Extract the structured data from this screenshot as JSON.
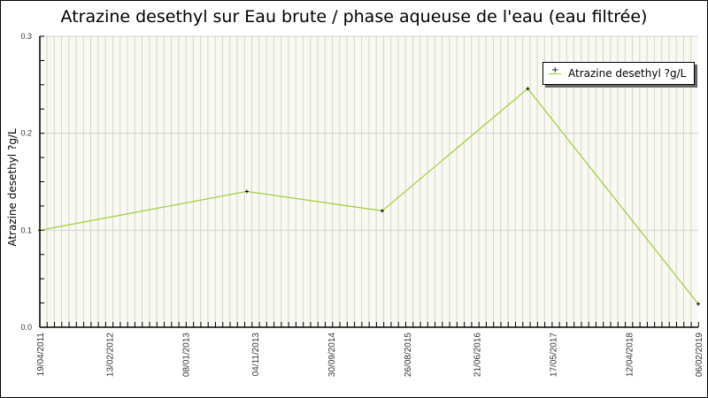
{
  "chart_data": {
    "type": "line",
    "title": "Atrazine desethyl sur Eau brute / phase aqueuse de l'eau (eau filtrée)",
    "xlabel": "",
    "ylabel": "Atrazine desethyl ?g/L",
    "ylim": [
      0.0,
      0.3
    ],
    "yticks": [
      "0.0",
      "0.1",
      "0.2",
      "0.3"
    ],
    "xticks": [
      "19/04/2011",
      "13/02/2012",
      "08/01/2013",
      "04/11/2013",
      "30/09/2014",
      "26/08/2015",
      "21/06/2016",
      "17/05/2017",
      "12/04/2018",
      "06/02/2019"
    ],
    "grid": true,
    "legend_position": "top-right",
    "series": [
      {
        "name": "Atrazine desethyl ?g/L",
        "color": "#9acd32",
        "x": [
          "19/04/2011",
          "01/10/2013",
          "10/05/2015",
          "29/01/2017",
          "06/02/2019"
        ],
        "values": [
          0.1,
          0.14,
          0.12,
          0.246,
          0.024
        ]
      }
    ]
  },
  "colors": {
    "plot_bg": "#f9f9f1",
    "grid": "#d4d4d4",
    "line": "#9acd32"
  }
}
